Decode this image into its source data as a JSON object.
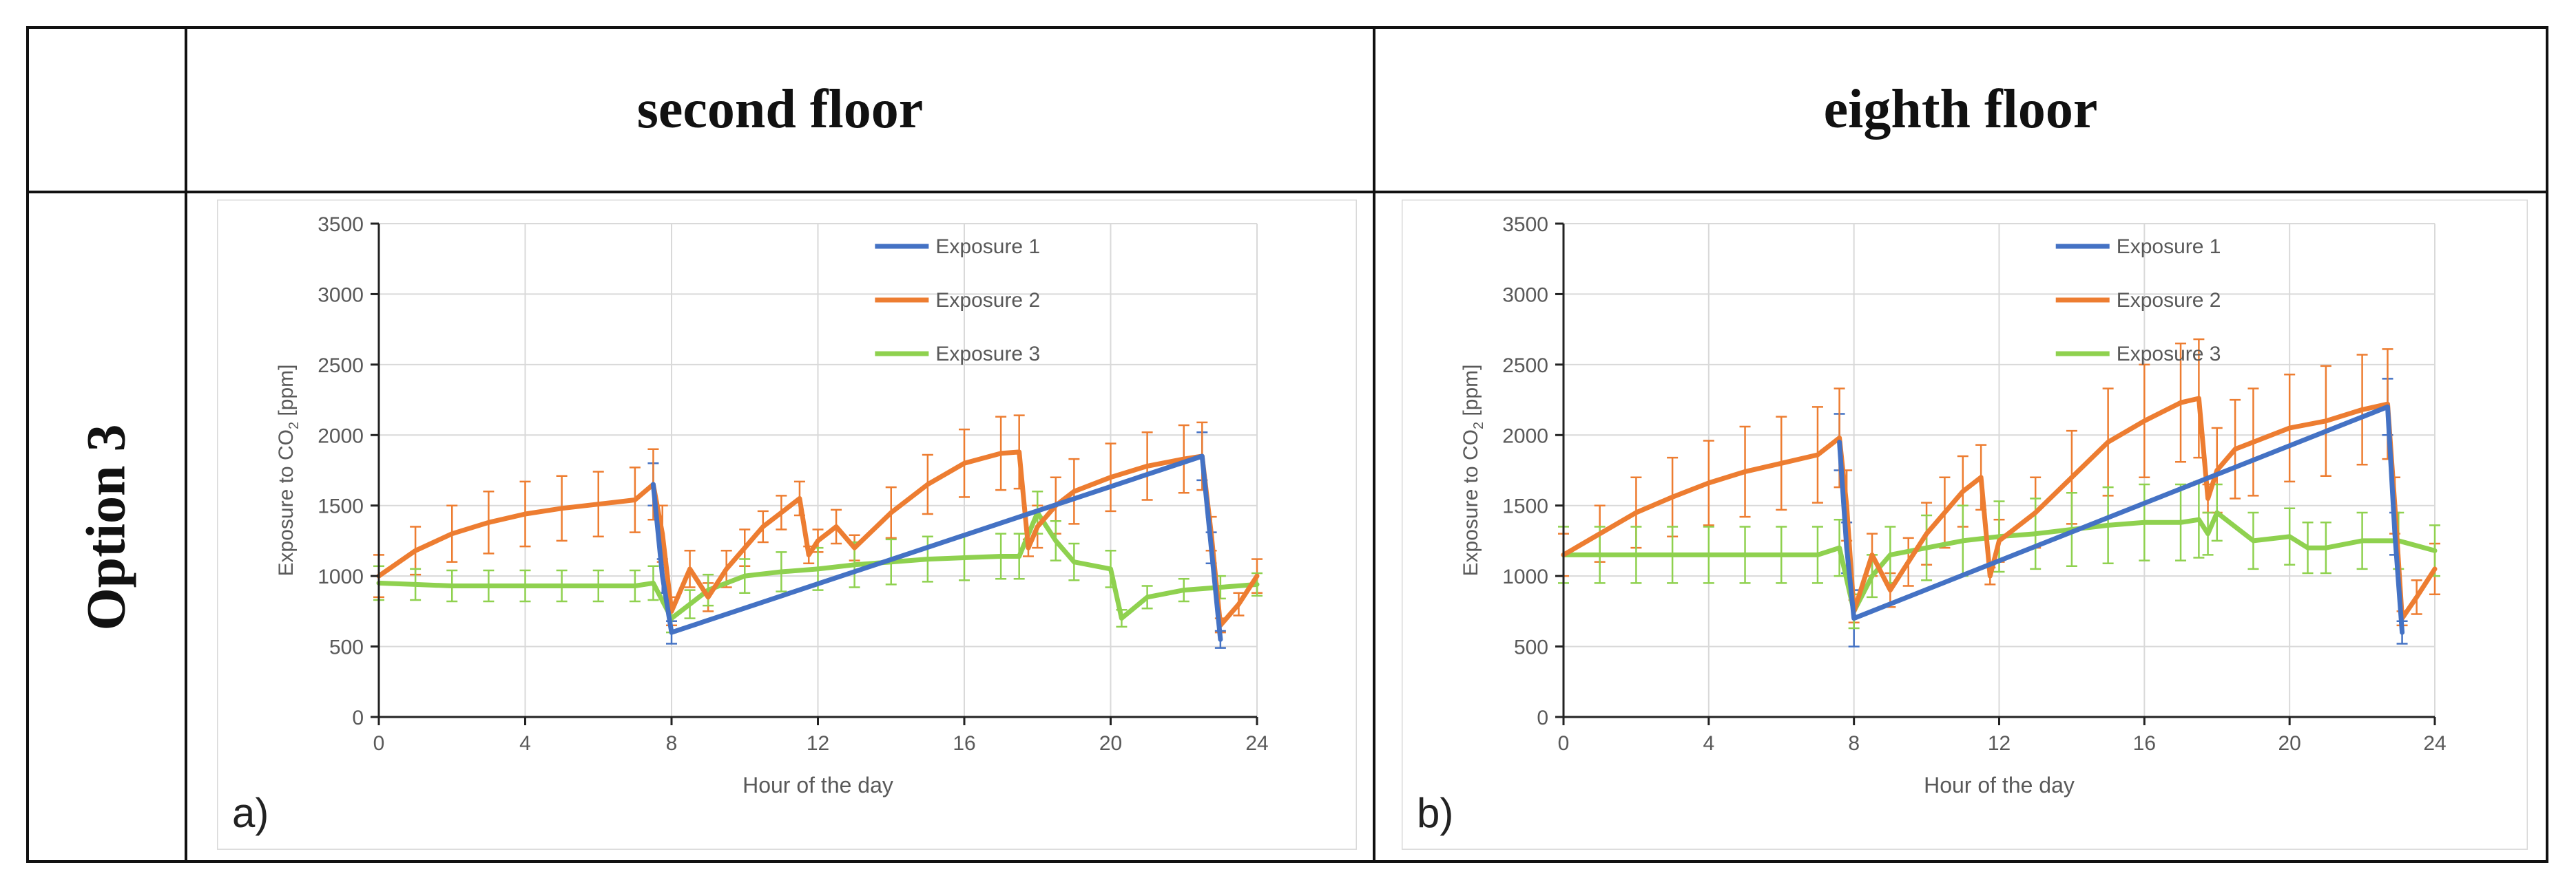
{
  "table": {
    "header_a": "second floor",
    "header_b": "eighth floor",
    "row_label": "Option 3"
  },
  "colors": {
    "exposure1": "#4472C4",
    "exposure2": "#ED7D31",
    "exposure3": "#8FD14F"
  },
  "chart_data": [
    {
      "type": "line",
      "panel_label": "a)",
      "xlabel": "Hour of the day",
      "ylabel_prefix": "Exposure to CO",
      "ylabel_sub": "2",
      "ylabel_suffix": " [ppm]",
      "xlim": [
        0,
        24
      ],
      "ylim": [
        0,
        3500
      ],
      "xticks": [
        0,
        4,
        8,
        12,
        16,
        20,
        24
      ],
      "yticks": [
        0,
        500,
        1000,
        1500,
        2000,
        2500,
        3000,
        3500
      ],
      "legend": [
        "Exposure 1",
        "Exposure 2",
        "Exposure 3"
      ],
      "series": [
        {
          "name": "Exposure 1",
          "color": "#4472C4",
          "x": [
            7.5,
            7.75,
            8.0,
            22.5,
            22.75,
            23.0
          ],
          "y": [
            1650,
            1000,
            600,
            1850,
            1200,
            550
          ],
          "err": [
            150,
            120,
            80,
            170,
            110,
            60
          ]
        },
        {
          "name": "Exposure 2",
          "color": "#ED7D31",
          "x": [
            0,
            1,
            2,
            3,
            4,
            5,
            6,
            7,
            7.5,
            7.75,
            8.0,
            8.5,
            9.0,
            9.5,
            10.0,
            10.5,
            11.0,
            11.5,
            11.75,
            12.0,
            12.5,
            13.0,
            14.0,
            15.0,
            16.0,
            17.0,
            17.5,
            17.75,
            18.0,
            18.5,
            19.0,
            20.0,
            21.0,
            22.0,
            22.5,
            22.75,
            23.0,
            23.5,
            24.0
          ],
          "y": [
            1000,
            1180,
            1300,
            1380,
            1440,
            1480,
            1510,
            1540,
            1650,
            1300,
            750,
            1050,
            850,
            1050,
            1200,
            1350,
            1450,
            1550,
            1150,
            1250,
            1350,
            1200,
            1450,
            1650,
            1800,
            1870,
            1880,
            1200,
            1350,
            1500,
            1600,
            1700,
            1780,
            1830,
            1850,
            1300,
            650,
            800,
            1000
          ],
          "err": [
            150,
            170,
            200,
            220,
            230,
            230,
            230,
            230,
            250,
            200,
            100,
            130,
            100,
            130,
            130,
            110,
            120,
            120,
            60,
            80,
            120,
            90,
            180,
            210,
            240,
            260,
            260,
            60,
            150,
            200,
            230,
            240,
            240,
            240,
            240,
            120,
            50,
            80,
            120
          ]
        },
        {
          "name": "Exposure 3",
          "color": "#8FD14F",
          "x": [
            0,
            1,
            2,
            3,
            4,
            5,
            6,
            7,
            7.5,
            8.0,
            8.5,
            9.0,
            10,
            11,
            12,
            13,
            14,
            15,
            16,
            17,
            17.5,
            18.0,
            18.5,
            19.0,
            20.0,
            20.3,
            21.0,
            22.0,
            23.0,
            24.0
          ],
          "y": [
            950,
            940,
            930,
            930,
            930,
            930,
            930,
            930,
            950,
            700,
            800,
            900,
            1000,
            1030,
            1050,
            1080,
            1100,
            1120,
            1130,
            1140,
            1140,
            1450,
            1250,
            1100,
            1050,
            700,
            850,
            900,
            920,
            940
          ],
          "err": [
            120,
            110,
            110,
            110,
            110,
            110,
            110,
            110,
            120,
            100,
            100,
            110,
            120,
            140,
            150,
            160,
            160,
            160,
            160,
            160,
            160,
            150,
            140,
            130,
            130,
            60,
            80,
            80,
            80,
            80
          ]
        }
      ]
    },
    {
      "type": "line",
      "panel_label": "b)",
      "xlabel": "Hour of the day",
      "ylabel_prefix": "Exposure to CO",
      "ylabel_sub": "2",
      "ylabel_suffix": " [ppm]",
      "xlim": [
        0,
        24
      ],
      "ylim": [
        0,
        3500
      ],
      "xticks": [
        0,
        4,
        8,
        12,
        16,
        20,
        24
      ],
      "yticks": [
        0,
        500,
        1000,
        1500,
        2000,
        2500,
        3000,
        3500
      ],
      "legend": [
        "Exposure 1",
        "Exposure 2",
        "Exposure 3"
      ],
      "series": [
        {
          "name": "Exposure 1",
          "color": "#4472C4",
          "x": [
            7.6,
            7.8,
            8.0,
            22.7,
            22.9,
            23.1
          ],
          "y": [
            1950,
            1200,
            700,
            2200,
            1300,
            600
          ],
          "err": [
            200,
            180,
            200,
            200,
            150,
            80
          ]
        },
        {
          "name": "Exposure 2",
          "color": "#ED7D31",
          "x": [
            0,
            1,
            2,
            3,
            4,
            5,
            6,
            7,
            7.6,
            7.8,
            8.0,
            8.5,
            9.0,
            9.5,
            10.0,
            10.5,
            11.0,
            11.5,
            11.75,
            12.0,
            13.0,
            14.0,
            15.0,
            16.0,
            17.0,
            17.5,
            17.75,
            18.0,
            18.5,
            19.0,
            20.0,
            21.0,
            22.0,
            22.7,
            22.9,
            23.1,
            23.5,
            24.0
          ],
          "y": [
            1150,
            1300,
            1450,
            1560,
            1660,
            1740,
            1800,
            1860,
            1980,
            1500,
            750,
            1150,
            900,
            1100,
            1300,
            1450,
            1600,
            1700,
            1000,
            1250,
            1450,
            1700,
            1950,
            2100,
            2230,
            2260,
            1550,
            1750,
            1900,
            1950,
            2050,
            2100,
            2180,
            2220,
            1500,
            700,
            850,
            1050
          ],
          "err": [
            150,
            200,
            250,
            280,
            300,
            320,
            330,
            340,
            350,
            250,
            80,
            150,
            120,
            170,
            220,
            250,
            250,
            230,
            60,
            150,
            250,
            330,
            380,
            400,
            420,
            420,
            100,
            300,
            350,
            380,
            380,
            390,
            390,
            390,
            200,
            50,
            120,
            180
          ]
        },
        {
          "name": "Exposure 3",
          "color": "#8FD14F",
          "x": [
            0,
            1,
            2,
            3,
            4,
            5,
            6,
            7,
            7.6,
            8.0,
            8.5,
            9.0,
            10,
            11,
            12,
            13,
            14,
            15,
            16,
            17,
            17.5,
            17.75,
            18.0,
            19,
            20,
            20.5,
            21,
            22,
            23,
            24
          ],
          "y": [
            1150,
            1150,
            1150,
            1150,
            1150,
            1150,
            1150,
            1150,
            1200,
            750,
            1000,
            1150,
            1200,
            1250,
            1280,
            1300,
            1330,
            1360,
            1380,
            1380,
            1400,
            1300,
            1450,
            1250,
            1280,
            1200,
            1200,
            1250,
            1250,
            1180
          ],
          "err": [
            200,
            200,
            200,
            200,
            200,
            200,
            200,
            200,
            200,
            120,
            150,
            200,
            230,
            250,
            250,
            250,
            260,
            270,
            270,
            270,
            270,
            150,
            200,
            200,
            200,
            180,
            180,
            200,
            200,
            180
          ]
        }
      ]
    }
  ]
}
